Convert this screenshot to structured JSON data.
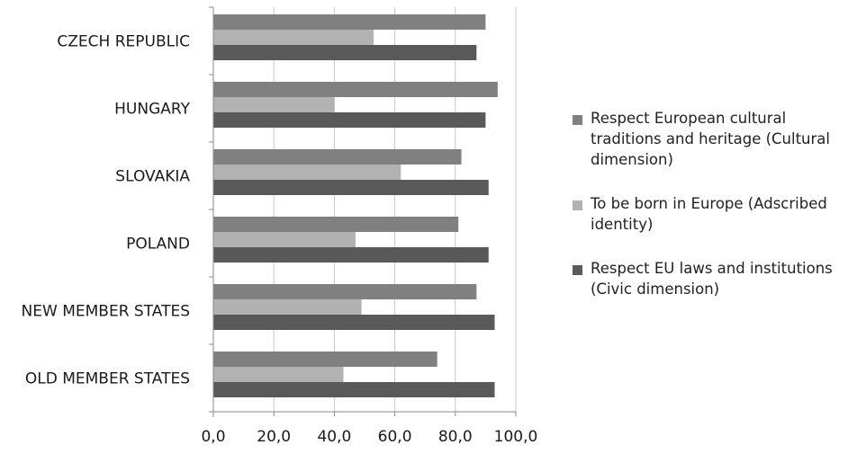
{
  "chart_data": {
    "type": "bar",
    "orientation": "horizontal",
    "categories": [
      "CZECH REPUBLIC",
      "HUNGARY",
      "SLOVAKIA",
      "POLAND",
      "NEW MEMBER STATES",
      "OLD MEMBER STATES"
    ],
    "series": [
      {
        "name": "Respect European cultural traditions and heritage (Cultural dimension)",
        "color": "#808080",
        "values": [
          90,
          94,
          82,
          81,
          87,
          74
        ]
      },
      {
        "name": "To be born in Europe (Adscribed identity)",
        "color": "#b2b2b2",
        "values": [
          53,
          40,
          62,
          47,
          49,
          43
        ]
      },
      {
        "name": "Respect EU laws and institutions (Civic dimension)",
        "color": "#595959",
        "values": [
          87,
          90,
          91,
          91,
          93,
          93
        ]
      }
    ],
    "xticks": [
      "0,0",
      "20,0",
      "40,0",
      "60,0",
      "80,0",
      "100,0"
    ],
    "xlim": [
      0,
      100
    ],
    "grid": true,
    "legend_position": "right"
  }
}
